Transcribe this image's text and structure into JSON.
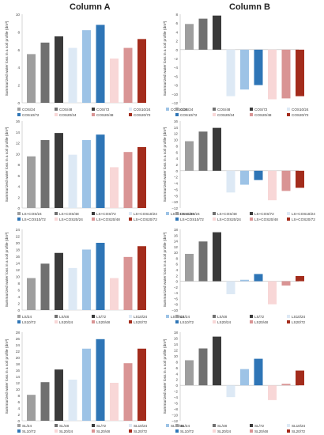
{
  "columns": {
    "a": "Column A",
    "b": "Column B"
  },
  "ylabel": "Summarized water loss in a soil profile (dm³)",
  "chart_data": [
    {
      "panel": "A1",
      "type": "bar",
      "ylabel": "Summarized water loss in a soil profile (dm³)",
      "ylim": [
        0,
        10
      ],
      "yticks": [
        0,
        2,
        4,
        6,
        8,
        10
      ],
      "grid": false,
      "series": [
        {
          "name": "COS/24",
          "value": 5.5,
          "color": "#9e9e9e"
        },
        {
          "name": "COS/48",
          "value": 6.8,
          "color": "#707070"
        },
        {
          "name": "COS/72",
          "value": 7.5,
          "color": "#3a3a3a"
        },
        {
          "name": "COS10/24",
          "value": 6.2,
          "color": "#dde9f5"
        },
        {
          "name": "COS10/48",
          "value": 8.2,
          "color": "#9dc3e6"
        },
        {
          "name": "COS10/72",
          "value": 8.8,
          "color": "#2e75b6"
        },
        {
          "name": "COS20/24",
          "value": 5.0,
          "color": "#f8d7d7"
        },
        {
          "name": "COS20/48",
          "value": 6.2,
          "color": "#d99494"
        },
        {
          "name": "COS20/72",
          "value": 7.2,
          "color": "#a32c1c"
        }
      ]
    },
    {
      "panel": "B1",
      "type": "bar",
      "ylabel": "Summarized water loss in a soil profile (dm³)",
      "ylim": [
        -12,
        8
      ],
      "yticks": [
        -12,
        -10,
        -8,
        -6,
        -4,
        -2,
        0,
        2,
        4,
        6,
        8
      ],
      "grid": false,
      "series": [
        {
          "name": "COS/24",
          "value": 5.8,
          "color": "#9e9e9e"
        },
        {
          "name": "COS/48",
          "value": 7.0,
          "color": "#707070"
        },
        {
          "name": "COS/72",
          "value": 7.7,
          "color": "#3a3a3a"
        },
        {
          "name": "COS10/24",
          "value": -10.5,
          "color": "#dde9f5"
        },
        {
          "name": "COS10/48",
          "value": -9.0,
          "color": "#9dc3e6"
        },
        {
          "name": "COS10/72",
          "value": -8.0,
          "color": "#2e75b6"
        },
        {
          "name": "COS20/24",
          "value": -11.2,
          "color": "#f8d7d7"
        },
        {
          "name": "COS20/48",
          "value": -11.0,
          "color": "#d99494"
        },
        {
          "name": "COS20/72",
          "value": -10.5,
          "color": "#a32c1c"
        }
      ]
    },
    {
      "panel": "A2",
      "type": "bar",
      "ylabel": "Summarized water loss in a soil profile (dm³)",
      "ylim": [
        0,
        16
      ],
      "yticks": [
        0,
        2,
        4,
        6,
        8,
        10,
        12,
        14,
        16
      ],
      "grid": false,
      "series": [
        {
          "name": "LS+COS/24",
          "value": 9.5,
          "color": "#9e9e9e"
        },
        {
          "name": "LS+COS/48",
          "value": 12.5,
          "color": "#707070"
        },
        {
          "name": "LS+COS/72",
          "value": 13.8,
          "color": "#3a3a3a"
        },
        {
          "name": "LS+COS10/24",
          "value": 9.8,
          "color": "#dde9f5"
        },
        {
          "name": "LS+COS10/48",
          "value": 12.5,
          "color": "#9dc3e6"
        },
        {
          "name": "LS+COS10/72",
          "value": 13.5,
          "color": "#2e75b6"
        },
        {
          "name": "LS+COS20/24",
          "value": 7.5,
          "color": "#f8d7d7"
        },
        {
          "name": "LS+COS20/48",
          "value": 10.3,
          "color": "#d99494"
        },
        {
          "name": "LS+COS20/72",
          "value": 11.2,
          "color": "#a32c1c"
        }
      ]
    },
    {
      "panel": "B2",
      "type": "bar",
      "ylabel": "Summarized water loss in a soil profile (dm³)",
      "ylim": [
        -12,
        16
      ],
      "yticks": [
        -12,
        -10,
        -8,
        -6,
        -4,
        -2,
        0,
        2,
        4,
        6,
        8,
        10,
        12,
        14,
        16
      ],
      "grid": false,
      "series": [
        {
          "name": "LS+COS/24",
          "value": 9.5,
          "color": "#9e9e9e"
        },
        {
          "name": "LS+COS/48",
          "value": 12.6,
          "color": "#707070"
        },
        {
          "name": "LS+COS/72",
          "value": 13.8,
          "color": "#3a3a3a"
        },
        {
          "name": "LS+COS10/24",
          "value": -7.0,
          "color": "#dde9f5"
        },
        {
          "name": "LS+COS10/48",
          "value": -4.5,
          "color": "#9dc3e6"
        },
        {
          "name": "LS+COS10/72",
          "value": -3.0,
          "color": "#2e75b6"
        },
        {
          "name": "LS+COS20/24",
          "value": -9.5,
          "color": "#f8d7d7"
        },
        {
          "name": "LS+COS20/48",
          "value": -6.5,
          "color": "#d99494"
        },
        {
          "name": "LS+COS20/72",
          "value": -5.5,
          "color": "#a32c1c"
        }
      ]
    },
    {
      "panel": "A3",
      "type": "bar",
      "ylabel": "Summarized water loss in a soil profile (dm³)",
      "ylim": [
        0,
        24
      ],
      "yticks": [
        0,
        2,
        4,
        6,
        8,
        10,
        12,
        14,
        16,
        18,
        20,
        22,
        24
      ],
      "grid": false,
      "series": [
        {
          "name": "LS/24",
          "value": 9.5,
          "color": "#9e9e9e"
        },
        {
          "name": "LS/48",
          "value": 13.8,
          "color": "#707070"
        },
        {
          "name": "LS/72",
          "value": 17.0,
          "color": "#3a3a3a"
        },
        {
          "name": "LS10/24",
          "value": 12.5,
          "color": "#dde9f5"
        },
        {
          "name": "LS10/48",
          "value": 18.0,
          "color": "#9dc3e6"
        },
        {
          "name": "LS10/72",
          "value": 20.0,
          "color": "#2e75b6"
        },
        {
          "name": "LS20/24",
          "value": 9.5,
          "color": "#f8d7d7"
        },
        {
          "name": "LS20/48",
          "value": 15.8,
          "color": "#d99494"
        },
        {
          "name": "LS20/72",
          "value": 19.0,
          "color": "#a32c1c"
        }
      ]
    },
    {
      "panel": "B3",
      "type": "bar",
      "ylabel": "Summarized water loss in a soil profile (dm³)",
      "ylim": [
        -10,
        18
      ],
      "yticks": [
        -10,
        -8,
        -6,
        -4,
        -2,
        0,
        2,
        4,
        6,
        8,
        10,
        12,
        14,
        16,
        18
      ],
      "grid": false,
      "series": [
        {
          "name": "LS/24",
          "value": 9.5,
          "color": "#9e9e9e"
        },
        {
          "name": "LS/48",
          "value": 13.8,
          "color": "#707070"
        },
        {
          "name": "LS/72",
          "value": 17.0,
          "color": "#3a3a3a"
        },
        {
          "name": "LS10/24",
          "value": -4.5,
          "color": "#dde9f5"
        },
        {
          "name": "LS10/48",
          "value": 0.5,
          "color": "#9dc3e6"
        },
        {
          "name": "LS10/72",
          "value": 2.5,
          "color": "#2e75b6"
        },
        {
          "name": "LS20/24",
          "value": -8.0,
          "color": "#f8d7d7"
        },
        {
          "name": "LS20/48",
          "value": -1.5,
          "color": "#d99494"
        },
        {
          "name": "LS20/72",
          "value": 1.8,
          "color": "#a32c1c"
        }
      ]
    },
    {
      "panel": "A4",
      "type": "bar",
      "ylabel": "Summarized water loss in a soil profile (dm³)",
      "ylim": [
        0,
        28
      ],
      "yticks": [
        0,
        2,
        4,
        6,
        8,
        10,
        12,
        14,
        16,
        18,
        20,
        22,
        24,
        26,
        28
      ],
      "grid": false,
      "series": [
        {
          "name": "SL/24",
          "value": 8.2,
          "color": "#9e9e9e"
        },
        {
          "name": "SL/48",
          "value": 12.2,
          "color": "#707070"
        },
        {
          "name": "SL/72",
          "value": 16.2,
          "color": "#3a3a3a"
        },
        {
          "name": "SL10/24",
          "value": 13.0,
          "color": "#dde9f5"
        },
        {
          "name": "SL10/48",
          "value": 22.8,
          "color": "#9dc3e6"
        },
        {
          "name": "SL10/72",
          "value": 25.8,
          "color": "#2e75b6"
        },
        {
          "name": "SL20/24",
          "value": 12.0,
          "color": "#f8d7d7"
        },
        {
          "name": "SL20/48",
          "value": 18.2,
          "color": "#d99494"
        },
        {
          "name": "SL20/72",
          "value": 22.8,
          "color": "#a32c1c"
        }
      ]
    },
    {
      "panel": "B4",
      "type": "bar",
      "ylabel": "Summarized water loss in a soil profile (dm³)",
      "ylim": [
        -12,
        18
      ],
      "yticks": [
        -12,
        -10,
        -8,
        -6,
        -4,
        -2,
        0,
        2,
        4,
        6,
        8,
        10,
        12,
        14,
        16,
        18
      ],
      "grid": false,
      "series": [
        {
          "name": "SL/24",
          "value": 8.5,
          "color": "#9e9e9e"
        },
        {
          "name": "SL/48",
          "value": 12.5,
          "color": "#707070"
        },
        {
          "name": "SL/72",
          "value": 16.5,
          "color": "#3a3a3a"
        },
        {
          "name": "SL10/24",
          "value": -4.0,
          "color": "#dde9f5"
        },
        {
          "name": "SL10/48",
          "value": 5.5,
          "color": "#9dc3e6"
        },
        {
          "name": "SL10/72",
          "value": 9.0,
          "color": "#2e75b6"
        },
        {
          "name": "SL20/24",
          "value": -5.0,
          "color": "#f8d7d7"
        },
        {
          "name": "SL20/48",
          "value": 0.5,
          "color": "#d99494"
        },
        {
          "name": "SL20/72",
          "value": 5.0,
          "color": "#a32c1c"
        }
      ]
    }
  ]
}
